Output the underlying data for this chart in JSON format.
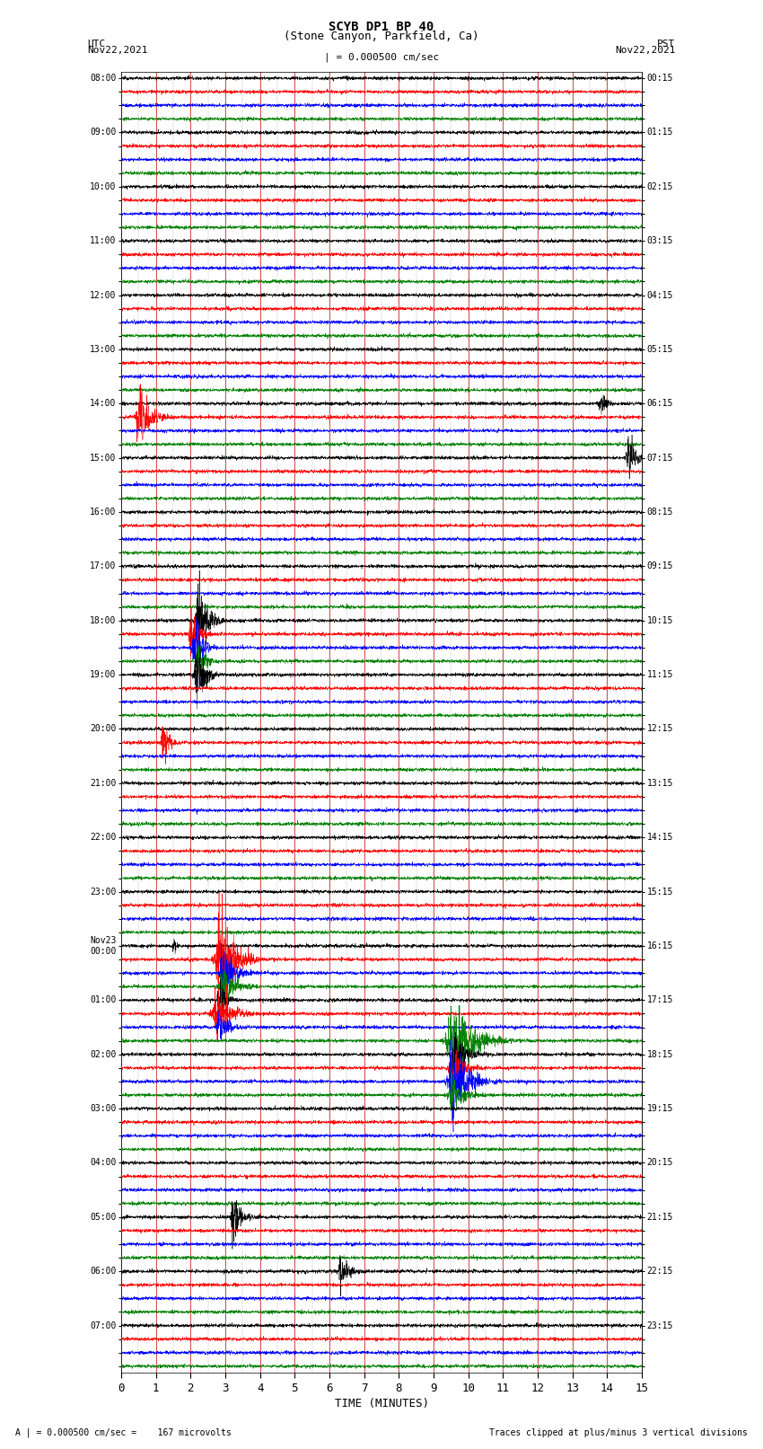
{
  "title_line1": "SCYB DP1 BP 40",
  "title_line2": "(Stone Canyon, Parkfield, Ca)",
  "scale_text": "| = 0.000500 cm/sec",
  "left_label_line1": "UTC",
  "left_label_line2": "Nov22,2021",
  "right_label_line1": "PST",
  "right_label_line2": "Nov22,2021",
  "bottom_label": "TIME (MINUTES)",
  "footer_left": "A | = 0.000500 cm/sec =    167 microvolts",
  "footer_right": "Traces clipped at plus/minus 3 vertical divisions",
  "xlim": [
    0,
    15
  ],
  "xticks": [
    0,
    1,
    2,
    3,
    4,
    5,
    6,
    7,
    8,
    9,
    10,
    11,
    12,
    13,
    14,
    15
  ],
  "n_rows": 96,
  "row_colors": [
    "black",
    "red",
    "blue",
    "green"
  ],
  "bg_color": "white",
  "noise_amp": 0.06,
  "utc_labels": [
    "08:00",
    "",
    "",
    "",
    "09:00",
    "",
    "",
    "",
    "10:00",
    "",
    "",
    "",
    "11:00",
    "",
    "",
    "",
    "12:00",
    "",
    "",
    "",
    "13:00",
    "",
    "",
    "",
    "14:00",
    "",
    "",
    "",
    "15:00",
    "",
    "",
    "",
    "16:00",
    "",
    "",
    "",
    "17:00",
    "",
    "",
    "",
    "18:00",
    "",
    "",
    "",
    "19:00",
    "",
    "",
    "",
    "20:00",
    "",
    "",
    "",
    "21:00",
    "",
    "",
    "",
    "22:00",
    "",
    "",
    "",
    "23:00",
    "",
    "",
    "",
    "Nov23\n00:00",
    "",
    "",
    "",
    "01:00",
    "",
    "",
    "",
    "02:00",
    "",
    "",
    "",
    "03:00",
    "",
    "",
    "",
    "04:00",
    "",
    "",
    "",
    "05:00",
    "",
    "",
    "",
    "06:00",
    "",
    "",
    "",
    "07:00",
    "",
    "",
    ""
  ],
  "pst_labels": [
    "00:15",
    "",
    "",
    "",
    "01:15",
    "",
    "",
    "",
    "02:15",
    "",
    "",
    "",
    "03:15",
    "",
    "",
    "",
    "04:15",
    "",
    "",
    "",
    "05:15",
    "",
    "",
    "",
    "06:15",
    "",
    "",
    "",
    "07:15",
    "",
    "",
    "",
    "08:15",
    "",
    "",
    "",
    "09:15",
    "",
    "",
    "",
    "10:15",
    "",
    "",
    "",
    "11:15",
    "",
    "",
    "",
    "12:15",
    "",
    "",
    "",
    "13:15",
    "",
    "",
    "",
    "14:15",
    "",
    "",
    "",
    "15:15",
    "",
    "",
    "",
    "16:15",
    "",
    "",
    "",
    "17:15",
    "",
    "",
    "",
    "18:15",
    "",
    "",
    "",
    "19:15",
    "",
    "",
    "",
    "20:15",
    "",
    "",
    "",
    "21:15",
    "",
    "",
    "",
    "22:15",
    "",
    "",
    "",
    "23:15",
    "",
    "",
    ""
  ],
  "events": [
    {
      "row": 24,
      "minute": 13.8,
      "amp": 1.2,
      "color": "green",
      "decay": 0.15
    },
    {
      "row": 25,
      "minute": 0.5,
      "amp": 2.8,
      "color": "black",
      "decay": 0.3
    },
    {
      "row": 28,
      "minute": 14.6,
      "amp": 2.0,
      "color": "black",
      "decay": 0.2
    },
    {
      "row": 40,
      "minute": 2.2,
      "amp": 3.5,
      "color": "black",
      "decay": 0.25
    },
    {
      "row": 41,
      "minute": 2.0,
      "amp": 2.5,
      "color": "red",
      "decay": 0.2
    },
    {
      "row": 42,
      "minute": 2.1,
      "amp": 3.0,
      "color": "blue",
      "decay": 0.2
    },
    {
      "row": 43,
      "minute": 2.2,
      "amp": 1.8,
      "color": "green",
      "decay": 0.2
    },
    {
      "row": 44,
      "minute": 2.15,
      "amp": 3.2,
      "color": "black",
      "decay": 0.22
    },
    {
      "row": 49,
      "minute": 1.2,
      "amp": 2.5,
      "color": "blue",
      "decay": 0.15
    },
    {
      "row": 64,
      "minute": 1.5,
      "amp": 0.8,
      "color": "blue",
      "decay": 0.1
    },
    {
      "row": 65,
      "minute": 2.8,
      "amp": 4.0,
      "color": "black",
      "decay": 0.4
    },
    {
      "row": 66,
      "minute": 2.9,
      "amp": 2.5,
      "color": "red",
      "decay": 0.3
    },
    {
      "row": 67,
      "minute": 2.9,
      "amp": 2.2,
      "color": "blue",
      "decay": 0.3
    },
    {
      "row": 68,
      "minute": 2.8,
      "amp": 1.5,
      "color": "green",
      "decay": 0.2
    },
    {
      "row": 69,
      "minute": 2.7,
      "amp": 2.5,
      "color": "black",
      "decay": 0.35
    },
    {
      "row": 70,
      "minute": 2.8,
      "amp": 1.5,
      "color": "red",
      "decay": 0.25
    },
    {
      "row": 71,
      "minute": 9.5,
      "amp": 4.5,
      "color": "blue",
      "decay": 0.5
    },
    {
      "row": 72,
      "minute": 9.6,
      "amp": 2.0,
      "color": "green",
      "decay": 0.3
    },
    {
      "row": 73,
      "minute": 9.5,
      "amp": 2.0,
      "color": "black",
      "decay": 0.3
    },
    {
      "row": 74,
      "minute": 9.5,
      "amp": 3.5,
      "color": "blue",
      "decay": 0.4
    },
    {
      "row": 75,
      "minute": 9.5,
      "amp": 2.0,
      "color": "green",
      "decay": 0.3
    },
    {
      "row": 84,
      "minute": 3.2,
      "amp": 2.5,
      "color": "black",
      "decay": 0.2
    },
    {
      "row": 88,
      "minute": 6.3,
      "amp": 2.0,
      "color": "black",
      "decay": 0.2
    }
  ]
}
